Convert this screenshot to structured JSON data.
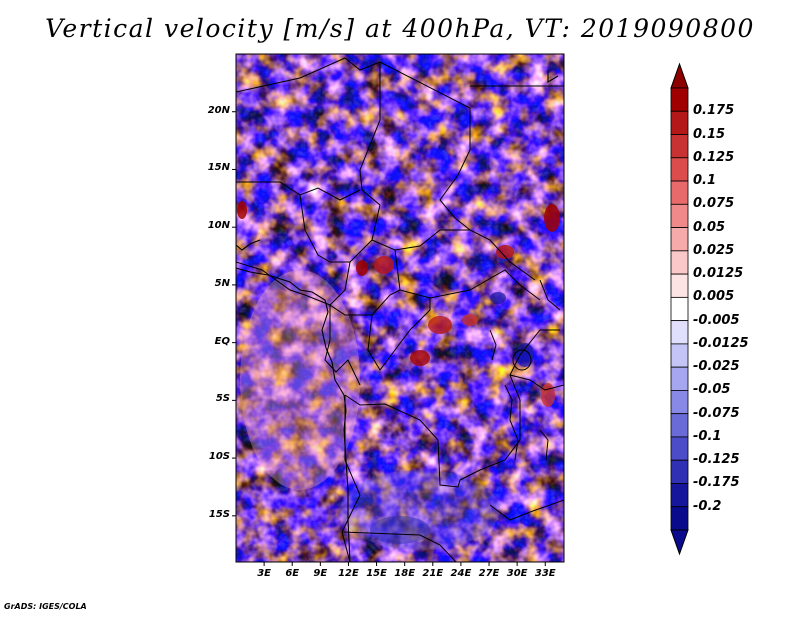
{
  "title": "Vertical velocity [m/s] at 400hPa, VT: 2019090800",
  "variable": "Vertical velocity",
  "units": "m/s",
  "level": "400hPa",
  "valid_time": "2019090800",
  "credit": "GrADS: IGES/COLA",
  "map": {
    "lon_range": [
      0,
      35
    ],
    "lat_range": [
      -19,
      25
    ],
    "lat_ticks": [
      {
        "value": 20,
        "label": "20N"
      },
      {
        "value": 15,
        "label": "15N"
      },
      {
        "value": 10,
        "label": "10N"
      },
      {
        "value": 5,
        "label": "5N"
      },
      {
        "value": 0,
        "label": "EQ"
      },
      {
        "value": -5,
        "label": "5S"
      },
      {
        "value": -10,
        "label": "10S"
      },
      {
        "value": -15,
        "label": "15S"
      }
    ],
    "lon_ticks": [
      {
        "value": 3,
        "label": "3E"
      },
      {
        "value": 6,
        "label": "6E"
      },
      {
        "value": 9,
        "label": "9E"
      },
      {
        "value": 12,
        "label": "12E"
      },
      {
        "value": 15,
        "label": "15E"
      },
      {
        "value": 18,
        "label": "18E"
      },
      {
        "value": 21,
        "label": "21E"
      },
      {
        "value": 24,
        "label": "24E"
      },
      {
        "value": 27,
        "label": "27E"
      },
      {
        "value": 30,
        "label": "30E"
      },
      {
        "value": 33,
        "label": "33E"
      }
    ]
  },
  "colorbar": {
    "levels": [
      {
        "label": "0.175",
        "color": "#a00000"
      },
      {
        "label": "0.15",
        "color": "#b41818"
      },
      {
        "label": "0.125",
        "color": "#c83232"
      },
      {
        "label": "0.1",
        "color": "#dc4c4c"
      },
      {
        "label": "0.075",
        "color": "#e86a6a"
      },
      {
        "label": "0.05",
        "color": "#f08a8a"
      },
      {
        "label": "0.025",
        "color": "#f6aaaa"
      },
      {
        "label": "0.0125",
        "color": "#fac8c8"
      },
      {
        "label": "0.005",
        "color": "#fde4e4"
      },
      {
        "label": "-0.005",
        "color": "#ffffff"
      },
      {
        "label": "-0.0125",
        "color": "#e0e0fc"
      },
      {
        "label": "-0.025",
        "color": "#c4c4f6"
      },
      {
        "label": "-0.05",
        "color": "#a6a6f0"
      },
      {
        "label": "-0.075",
        "color": "#8888e6"
      },
      {
        "label": "-0.1",
        "color": "#6a6ad8"
      },
      {
        "label": "-0.125",
        "color": "#4c4cc8"
      },
      {
        "label": "-0.175",
        "color": "#3030b4"
      },
      {
        "label": "-0.2",
        "color": "#16169c"
      }
    ],
    "top_cap_color": "#8c0000",
    "bottom_cap_color": "#0a0a8c"
  }
}
